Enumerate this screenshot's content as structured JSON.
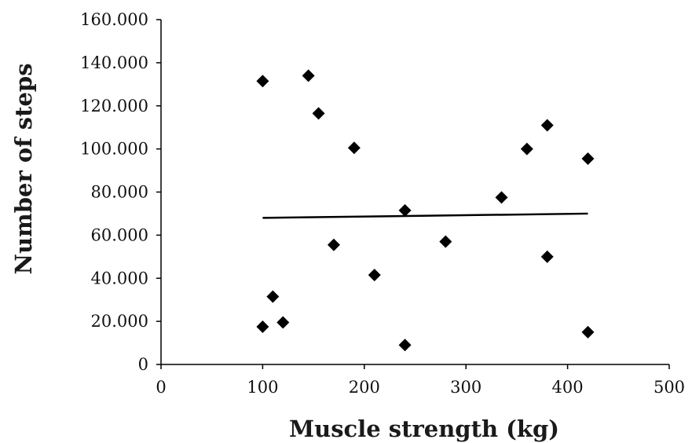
{
  "chart_data": {
    "type": "scatter",
    "title": "",
    "xlabel": "Muscle strength (kg)",
    "ylabel": "Number of steps",
    "xlim": [
      0,
      500
    ],
    "ylim": [
      0,
      160000
    ],
    "x_ticks": [
      0,
      100,
      200,
      300,
      400,
      500
    ],
    "x_tick_labels": [
      "0",
      "100",
      "200",
      "300",
      "400",
      "500"
    ],
    "y_ticks": [
      0,
      20000,
      40000,
      60000,
      80000,
      100000,
      120000,
      140000,
      160000
    ],
    "y_tick_labels": [
      "0",
      "20.000",
      "40.000",
      "60.000",
      "80.000",
      "100.000",
      "120.000",
      "140.000",
      "160.000"
    ],
    "grid": false,
    "marker": "diamond",
    "marker_color": "#000000",
    "series": [
      {
        "points": [
          {
            "x": 100,
            "y": 131500
          },
          {
            "x": 145,
            "y": 134000
          },
          {
            "x": 155,
            "y": 116500
          },
          {
            "x": 190,
            "y": 100500
          },
          {
            "x": 100,
            "y": 17500
          },
          {
            "x": 110,
            "y": 31500
          },
          {
            "x": 120,
            "y": 19500
          },
          {
            "x": 170,
            "y": 55500
          },
          {
            "x": 210,
            "y": 41500
          },
          {
            "x": 240,
            "y": 71500
          },
          {
            "x": 240,
            "y": 9000
          },
          {
            "x": 280,
            "y": 57000
          },
          {
            "x": 335,
            "y": 77500
          },
          {
            "x": 360,
            "y": 100000
          },
          {
            "x": 380,
            "y": 111000
          },
          {
            "x": 380,
            "y": 50000
          },
          {
            "x": 420,
            "y": 95500
          },
          {
            "x": 420,
            "y": 15000
          }
        ]
      }
    ],
    "trendline": {
      "x": [
        100,
        420
      ],
      "y": [
        68000,
        70000
      ],
      "color": "#000000"
    }
  }
}
